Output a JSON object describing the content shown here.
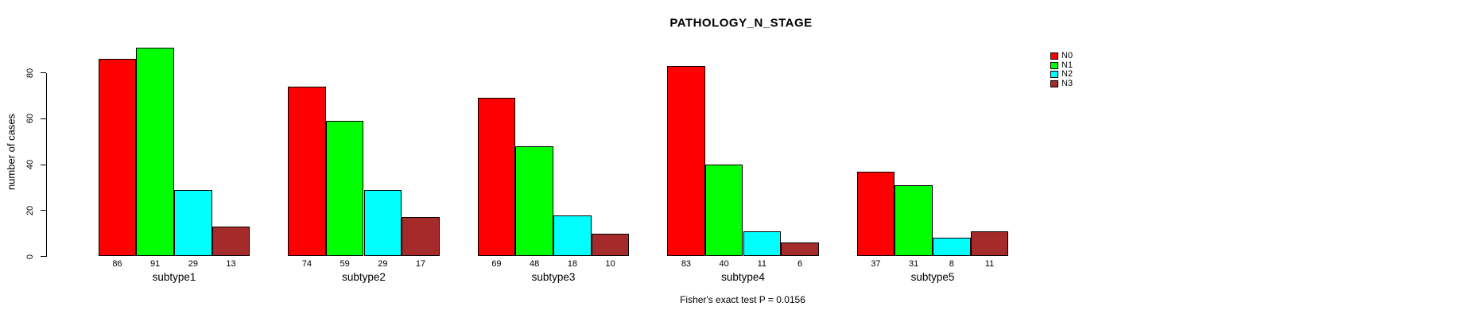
{
  "page": {
    "background": "#ffffff"
  },
  "chart_data": {
    "type": "bar",
    "title": "PATHOLOGY_N_STAGE",
    "ylabel": "number of cases",
    "xlabel": "",
    "caption": "Fisher's exact test P = 0.0156",
    "categories": [
      "subtype1",
      "subtype2",
      "subtype3",
      "subtype4",
      "subtype5"
    ],
    "series": [
      {
        "name": "N0",
        "color": "#FF0000",
        "values": [
          86,
          74,
          69,
          83,
          37
        ]
      },
      {
        "name": "N1",
        "color": "#00FF00",
        "values": [
          91,
          59,
          48,
          40,
          31
        ]
      },
      {
        "name": "N2",
        "color": "#00FFFF",
        "values": [
          29,
          29,
          18,
          11,
          8
        ]
      },
      {
        "name": "N3",
        "color": "#A52A2A",
        "values": [
          13,
          17,
          10,
          6,
          11
        ]
      }
    ],
    "bar_border_color": "#000000",
    "yticks": [
      0,
      20,
      40,
      60,
      80
    ],
    "ylim": [
      0,
      91
    ],
    "grid": false,
    "value_labels_shown": true,
    "legend": {
      "position": "top-right",
      "entries": [
        "N0",
        "N1",
        "N2",
        "N3"
      ]
    }
  }
}
